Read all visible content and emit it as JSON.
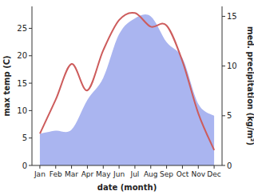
{
  "chart_data": {
    "type": "line",
    "x_label": "date (month)",
    "y_label": "max temp (C)",
    "y2_label": "med. precipitation (kg/m²)",
    "categories": [
      "Jan",
      "Feb",
      "Mar",
      "Apr",
      "May",
      "Jun",
      "Jul",
      "Aug",
      "Sep",
      "Oct",
      "Nov",
      "Dec"
    ],
    "ylim": [
      0,
      29
    ],
    "yticks": [
      0,
      5,
      10,
      15,
      20,
      25
    ],
    "y2lim": [
      0,
      16
    ],
    "y2ticks": [
      0,
      5,
      10,
      15
    ],
    "series": [
      {
        "name": "med. precipitation",
        "type": "area",
        "axis": "y2",
        "color": "#aab5f0",
        "values": [
          3.2,
          3.5,
          3.6,
          6.6,
          8.8,
          13.2,
          14.8,
          15.0,
          12.4,
          10.8,
          6.2,
          5.0
        ]
      },
      {
        "name": "max temp",
        "type": "line",
        "color": "#cd5c5c",
        "values": [
          5.8,
          12.0,
          18.5,
          13.7,
          21.0,
          26.5,
          27.8,
          25.3,
          25.5,
          19.0,
          9.5,
          2.8
        ]
      }
    ]
  }
}
